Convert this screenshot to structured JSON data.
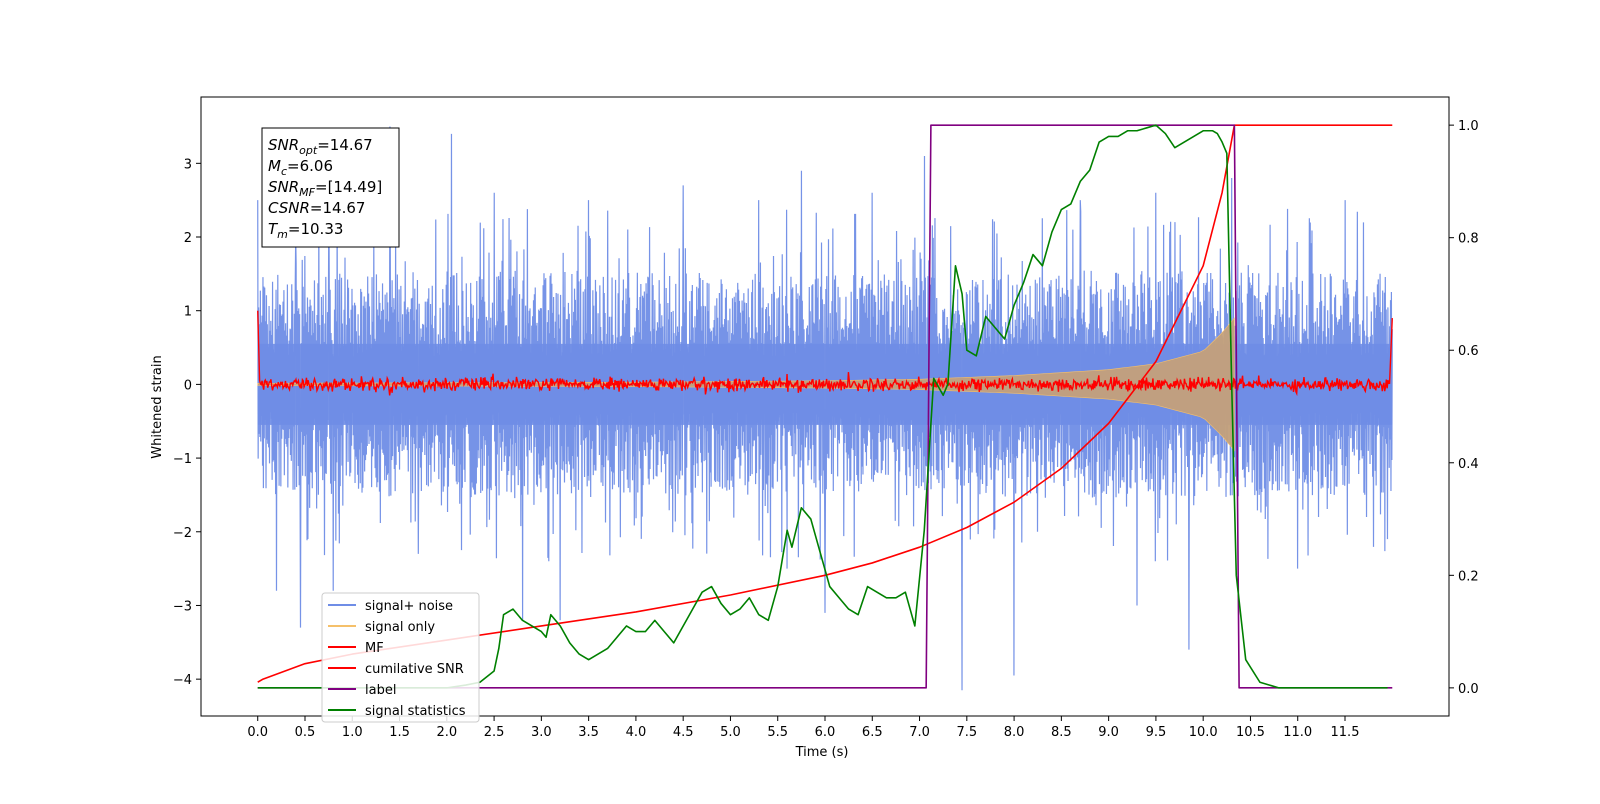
{
  "chart_data": {
    "type": "line",
    "title": "",
    "xlabel": "Time (s)",
    "ylabel": "Whitened strain",
    "xlim": [
      -0.6,
      12.6
    ],
    "ylim": [
      -4.5,
      3.9
    ],
    "y2lim": [
      -0.05,
      1.05
    ],
    "xticks": [
      0.0,
      0.5,
      1.0,
      1.5,
      2.0,
      2.5,
      3.0,
      3.5,
      4.0,
      4.5,
      5.0,
      5.5,
      6.0,
      6.5,
      7.0,
      7.5,
      8.0,
      8.5,
      9.0,
      9.5,
      10.0,
      10.5,
      11.0,
      11.5
    ],
    "xtick_labels": [
      "0.0",
      "0.5",
      "1.0",
      "1.5",
      "2.0",
      "2.5",
      "3.0",
      "3.5",
      "4.0",
      "4.5",
      "5.0",
      "5.5",
      "6.0",
      "6.5",
      "7.0",
      "7.5",
      "8.0",
      "8.5",
      "9.0",
      "9.5",
      "10.0",
      "10.5",
      "11.0",
      "11.5"
    ],
    "yticks": [
      -4,
      -3,
      -2,
      -1,
      0,
      1,
      2,
      3
    ],
    "ytick_labels": [
      "−4",
      "−3",
      "−2",
      "−1",
      "0",
      "1",
      "2",
      "3"
    ],
    "y2ticks": [
      0.0,
      0.2,
      0.4,
      0.6,
      0.8,
      1.0
    ],
    "y2tick_labels": [
      "0.0",
      "0.2",
      "0.4",
      "0.6",
      "0.8",
      "1.0"
    ],
    "grid": false,
    "legend_position": "lower-left",
    "annotation": {
      "position": "top-left",
      "lines": [
        {
          "base": "SNR",
          "sub": "opt",
          "value": "=14.67"
        },
        {
          "base": "M",
          "sub": "c",
          "value": "=6.06"
        },
        {
          "base": "SNR",
          "sub": "MF",
          "value": "=[14.49]"
        },
        {
          "base": "CSNR",
          "sub": "",
          "value": "=14.67"
        },
        {
          "base": "T",
          "sub": "m",
          "value": "=10.33"
        }
      ]
    },
    "series": [
      {
        "name": "signal+ noise",
        "color": "#6f8de6",
        "axis": "left",
        "style": "noise-band",
        "x_range": [
          0.0,
          12.0
        ],
        "upper_envelope": [
          [
            0.0,
            1.5
          ],
          [
            3.0,
            1.55
          ],
          [
            6.0,
            1.5
          ],
          [
            9.0,
            1.55
          ],
          [
            12.0,
            1.5
          ]
        ],
        "lower_envelope": [
          [
            0.0,
            -1.5
          ],
          [
            3.0,
            -1.55
          ],
          [
            6.0,
            -1.5
          ],
          [
            9.0,
            -1.55
          ],
          [
            12.0,
            -1.5
          ]
        ],
        "peaks": [
          [
            0.0,
            2.5
          ],
          [
            0.4,
            2.0
          ],
          [
            0.75,
            2.6
          ],
          [
            1.4,
            3.5
          ],
          [
            2.05,
            3.4
          ],
          [
            2.5,
            2.6
          ],
          [
            3.5,
            2.5
          ],
          [
            4.5,
            2.7
          ],
          [
            5.3,
            2.5
          ],
          [
            5.75,
            2.9
          ],
          [
            6.5,
            2.6
          ],
          [
            7.05,
            3.1
          ],
          [
            8.0,
            2.6
          ],
          [
            8.7,
            2.5
          ],
          [
            9.5,
            2.6
          ],
          [
            10.3,
            2.8
          ],
          [
            11.0,
            2.6
          ],
          [
            11.5,
            2.5
          ],
          [
            11.95,
            2.4
          ]
        ],
        "troughs": [
          [
            0.2,
            -2.8
          ],
          [
            0.45,
            -3.3
          ],
          [
            0.8,
            -2.8
          ],
          [
            1.7,
            -2.3
          ],
          [
            2.8,
            -3.2
          ],
          [
            3.2,
            -3.2
          ],
          [
            5.6,
            -2.5
          ],
          [
            6.0,
            -3.1
          ],
          [
            7.45,
            -4.15
          ],
          [
            8.0,
            -3.95
          ],
          [
            9.3,
            -3.0
          ],
          [
            9.85,
            -3.6
          ],
          [
            11.0,
            -2.5
          ],
          [
            11.95,
            -2.1
          ]
        ]
      },
      {
        "name": "signal only",
        "color": "#f5c06a",
        "axis": "left",
        "style": "chirp-envelope",
        "x_range": [
          0.0,
          10.33
        ],
        "envelope": [
          [
            0.0,
            0.015
          ],
          [
            4.0,
            0.03
          ],
          [
            6.0,
            0.05
          ],
          [
            7.0,
            0.07
          ],
          [
            8.0,
            0.12
          ],
          [
            9.0,
            0.2
          ],
          [
            9.5,
            0.28
          ],
          [
            10.0,
            0.45
          ],
          [
            10.2,
            0.7
          ],
          [
            10.33,
            0.9
          ]
        ]
      },
      {
        "name": "MF",
        "color": "#ff0000",
        "axis": "left",
        "style": "noise-trace",
        "x_range": [
          0.0,
          12.0
        ],
        "amplitude": 0.08,
        "start_value": 1.0,
        "end_value": 0.9
      },
      {
        "name": "cumilative SNR",
        "color": "#ff0000",
        "axis": "right",
        "x": [
          0.0,
          0.05,
          0.5,
          1.0,
          2.0,
          3.0,
          4.0,
          5.0,
          6.0,
          6.5,
          7.0,
          7.5,
          8.0,
          8.5,
          9.0,
          9.5,
          10.0,
          10.2,
          10.33,
          12.0
        ],
        "values": [
          0.01,
          0.015,
          0.043,
          0.06,
          0.085,
          0.11,
          0.135,
          0.165,
          0.2,
          0.222,
          0.25,
          0.285,
          0.33,
          0.39,
          0.47,
          0.58,
          0.75,
          0.88,
          1.0,
          1.0
        ]
      },
      {
        "name": "label",
        "color": "#800080",
        "axis": "right",
        "x": [
          0.0,
          7.07,
          7.12,
          10.33,
          10.38,
          12.0
        ],
        "values": [
          0.0,
          0.0,
          1.0,
          1.0,
          0.0,
          0.0
        ]
      },
      {
        "name": "signal statistics",
        "color": "#008000",
        "axis": "right",
        "x": [
          0.0,
          0.5,
          1.0,
          1.5,
          2.0,
          2.2,
          2.35,
          2.5,
          2.55,
          2.6,
          2.7,
          2.8,
          2.9,
          3.0,
          3.05,
          3.1,
          3.2,
          3.3,
          3.4,
          3.5,
          3.6,
          3.7,
          3.8,
          3.9,
          4.0,
          4.1,
          4.2,
          4.3,
          4.4,
          4.5,
          4.6,
          4.7,
          4.8,
          4.9,
          5.0,
          5.1,
          5.2,
          5.3,
          5.4,
          5.5,
          5.6,
          5.65,
          5.75,
          5.85,
          5.95,
          6.05,
          6.15,
          6.25,
          6.35,
          6.45,
          6.55,
          6.65,
          6.75,
          6.85,
          6.95,
          7.05,
          7.15,
          7.25,
          7.3,
          7.38,
          7.45,
          7.5,
          7.6,
          7.7,
          7.8,
          7.9,
          8.0,
          8.1,
          8.2,
          8.3,
          8.4,
          8.5,
          8.6,
          8.7,
          8.8,
          8.9,
          9.0,
          9.1,
          9.2,
          9.3,
          9.4,
          9.5,
          9.6,
          9.7,
          9.8,
          9.9,
          10.0,
          10.1,
          10.15,
          10.2,
          10.25,
          10.3,
          10.35,
          10.45,
          10.6,
          10.8,
          11.0,
          11.5,
          11.95
        ],
        "values": [
          0.0,
          0.0,
          0.0,
          0.0,
          0.0,
          0.005,
          0.01,
          0.03,
          0.07,
          0.13,
          0.14,
          0.12,
          0.11,
          0.1,
          0.09,
          0.13,
          0.11,
          0.08,
          0.06,
          0.05,
          0.06,
          0.07,
          0.09,
          0.11,
          0.1,
          0.1,
          0.12,
          0.1,
          0.08,
          0.11,
          0.14,
          0.17,
          0.18,
          0.15,
          0.13,
          0.14,
          0.16,
          0.13,
          0.12,
          0.18,
          0.28,
          0.25,
          0.32,
          0.3,
          0.24,
          0.18,
          0.16,
          0.14,
          0.13,
          0.18,
          0.17,
          0.16,
          0.16,
          0.17,
          0.11,
          0.28,
          0.55,
          0.52,
          0.54,
          0.75,
          0.7,
          0.6,
          0.59,
          0.66,
          0.64,
          0.62,
          0.68,
          0.72,
          0.77,
          0.75,
          0.81,
          0.85,
          0.86,
          0.9,
          0.92,
          0.97,
          0.98,
          0.98,
          0.99,
          0.99,
          0.995,
          1.0,
          0.985,
          0.96,
          0.97,
          0.98,
          0.99,
          0.99,
          0.985,
          0.97,
          0.95,
          0.55,
          0.2,
          0.05,
          0.01,
          0.0,
          0.0,
          0.0,
          0.0
        ]
      }
    ]
  }
}
